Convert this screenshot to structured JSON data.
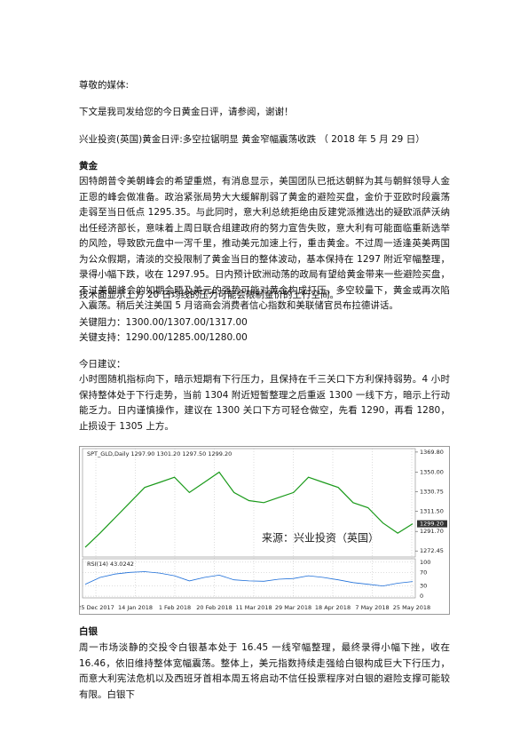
{
  "greeting": "尊敬的媒体:",
  "intro": "下文是我司发给您的今日黄金日评，请参阅，谢谢！",
  "headline": "兴业投资(英国)黄金日评:多空拉锯明显 黄金窄幅震荡收跌 （ 2018 年 5 月 29 日）",
  "gold": {
    "heading": "黄金",
    "body": "因特朗普令美朝峰会的希望重燃，有消息显示，美国团队已抵达朝鲜为其与朝鲜领导人金正恩的峰会做准备。政治紧张局势大大缓解削弱了黄金的避险买盘，金价于亚欧时段震荡走弱至当日低点 1295.35。与此同时，意大利总统拒绝由反建党派推选出的疑欧派萨沃纳出任经济部长，意味着上周日联合组建政府的努力宣告失败，意大利有可能面临重新选举的风险，导致欧元盘中一泻千里，推动美元加速上行，重击黄金。不过周一适逢英美两国为公众假期，清淡的交投限制了黄金当日的整体波动，基本保持在 1297 附近窄幅整理，录得小幅下跌，收在 1297.95。日内预计欧洲动荡的政局有望给黄金带来一些避险买盘，不过美朝峰会的如期会晤及美元的强势可能对黄金构成打压，多空较量下，黄金或再次陷入震荡。稍后关注美国 5 月谘商会消费者信心指数和美联储官员布拉德讲话。",
    "technical": "技术面显示上方 20 日均线的压力可能会限制金价的上行空间。",
    "resistance": "关键阻力：1300.00/1307.00/1317.00",
    "support": "关键支持：1290.00/1285.00/1280.00",
    "advice_heading": "今日建议：",
    "advice": "小时图随机指标向下，暗示短期有下行压力，且保持在千三关口下方利保持弱势。4 小时保持整体处于下行走势，当前 1304 附近短暂整理之后重返 1300 一线下方，暗示上行动能乏力。日内谨慎操作，建议在 1300 关口下方可轻仓做空，先看 1290，再看 1280，止损设于 1305 上方。"
  },
  "chart_data": {
    "type": "line",
    "title": "SPT_GLD,Daily  1297.90 1301.20 1297.50 1299.20",
    "watermark": "来源：兴业投资（英国）",
    "x_labels": [
      "25 Dec 2017",
      "14 Jan 2018",
      "1 Feb 2018",
      "20 Feb 2018",
      "11 Mar 2018",
      "29 Mar 2018",
      "18 Apr 2018",
      "7 May 2018",
      "25 May 2018"
    ],
    "series": [
      {
        "name": "SPT_GLD",
        "color": "#1a9a1a",
        "values": [
          1276,
          1290,
          1305,
          1320,
          1335,
          1340,
          1345,
          1330,
          1340,
          1350,
          1330,
          1322,
          1320,
          1325,
          1330,
          1345,
          1340,
          1335,
          1320,
          1315,
          1300,
          1290,
          1299.2
        ]
      }
    ],
    "ylim": [
      1266.5,
      1373.2
    ],
    "yticks": [
      {
        "value": 1369.8,
        "label": "1369.80"
      },
      {
        "value": 1350,
        "label": "1350.00"
      },
      1330.75,
      {
        "value": 1311.5,
        "label": "1311.50"
      },
      {
        "value": 1291.7,
        "label": "1291.70"
      },
      1272.45
    ],
    "last_price": {
      "value": 1299.2,
      "label": "1299.20"
    },
    "rsi": {
      "title": "RSI(14) 43.0242",
      "color": "#1e6fd9",
      "values": [
        35,
        55,
        65,
        70,
        72,
        68,
        60,
        45,
        55,
        62,
        48,
        45,
        44,
        50,
        52,
        60,
        55,
        48,
        40,
        35,
        30,
        38,
        43
      ],
      "ylim": [
        -5,
        110
      ],
      "yticks": [
        100,
        70,
        30,
        0
      ]
    }
  },
  "silver": {
    "heading": "白银",
    "body": "周一市场淡静的交投令白银基本处于 16.45 一线窄幅整理，最终录得小幅下挫，收在 16.46，依旧维持整体宽幅震荡。整体上，美元指数持续走强给白银构成巨大下行压力，而意大利宪法危机以及西班牙首相本周五将启动不信任投票程序对白银的避险支撑可能较有限。白银下"
  }
}
